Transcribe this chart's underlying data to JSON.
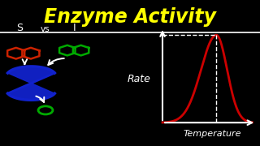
{
  "title": "Enzyme Activity",
  "title_color": "#FFFF00",
  "background_color": "#000000",
  "line_color": "#FFFFFF",
  "curve_color": "#CC0000",
  "rate_label": "Rate",
  "temp_label": "Temperature",
  "s_label": "S",
  "vs_label": "vs",
  "i_label": "I",
  "red_molecule_color": "#CC2200",
  "green_molecule_color": "#00AA00",
  "enzyme_color": "#1122CC",
  "product_color": "#00AA00",
  "dashed_color": "#FFFFFF",
  "figsize": [
    3.2,
    1.8
  ],
  "dpi": 100
}
